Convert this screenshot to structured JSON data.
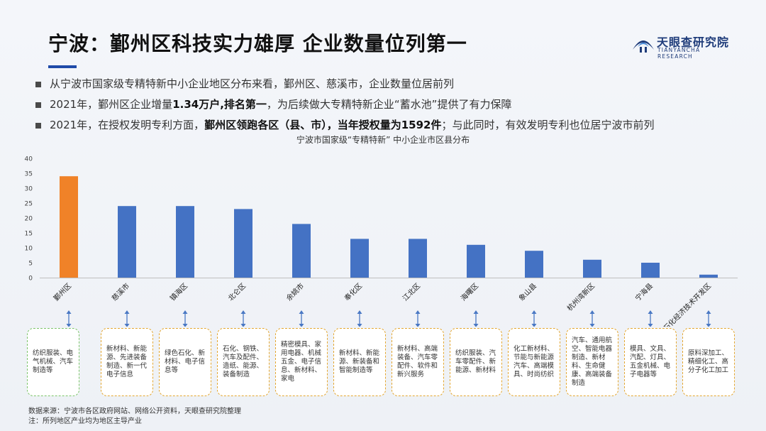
{
  "header": {
    "title": "宁波：鄞州区科技实力雄厚 企业数量位列第一",
    "logo_name": "天眼查研究院",
    "logo_sub": "TIANYANCHA RESEARCH"
  },
  "bullets": [
    {
      "pre": "从宁波市国家级专精特新中小企业地区分布来看，鄞州区、慈溪市，企业数量位居前列",
      "bold": "",
      "post": ""
    },
    {
      "pre": "2021年，鄞州区企业增量",
      "bold": "1.34万户,排名第一",
      "post": "，为后续做大专精特新企业“蓄水池”提供了有力保障"
    },
    {
      "pre": "2021年，在授权发明专利方面，",
      "bold": "鄞州区领跑各区（县、市），当年授权量为1592件",
      "post": "；与此同时，有效发明专利也位居宁波市前列"
    }
  ],
  "chart_data": {
    "type": "bar",
    "title": "宁波市国家级“专精特新” 中小企业市区县分布",
    "categories": [
      "鄞州区",
      "慈溪市",
      "镇海区",
      "北仑区",
      "余姚市",
      "奉化区",
      "江北区",
      "海曙区",
      "象山县",
      "杭州湾新区",
      "宁海县",
      "石化经济技术开发区"
    ],
    "values": [
      34,
      24,
      24,
      23,
      18,
      13,
      13,
      11,
      9,
      6,
      5,
      1
    ],
    "ylim": [
      0,
      40
    ],
    "yticks": [
      0,
      5,
      10,
      15,
      20,
      25,
      30,
      35,
      40
    ],
    "grid": false,
    "colors": {
      "highlight": "#f08228",
      "default": "#4472c4",
      "highlight_index": 0
    }
  },
  "industries": [
    "纺织服装、电气机械、汽车制造等",
    "新材料、新能源、先进装备制造、新一代电子信息",
    "绿色石化、新材料、电子信息等",
    "石化、钢铁、汽车及配件、造纸、能源、装备制造",
    "精密模具、家用电器、机械五金、电子信息、新材料、家电",
    "新材料、新能源、新装备和智能制造等",
    "新材料、高端装备、汽车零配件、软件和新兴服务",
    "纺织服装、汽车零配件、新能源、新材料",
    "化工新材料、节能与新能源汽车、高端模具、时尚纺织",
    "汽车、通用航空、智能电器制造、新材料、生命健康、高端装备制造",
    "模具、文具、汽配、灯具、五金机械、电子电器等",
    "原料深加工、精细化工、高分子化工加工"
  ],
  "footer": {
    "source": "数据来源：宁波市各区政府网站、网络公开资料，天眼查研究院整理",
    "note": "注：所列地区产业均为地区主导产业"
  }
}
